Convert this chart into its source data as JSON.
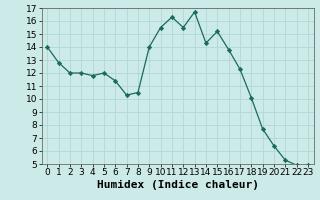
{
  "x": [
    0,
    1,
    2,
    3,
    4,
    5,
    6,
    7,
    8,
    9,
    10,
    11,
    12,
    13,
    14,
    15,
    16,
    17,
    18,
    19,
    20,
    21,
    22,
    23
  ],
  "y": [
    14.0,
    12.8,
    12.0,
    12.0,
    11.8,
    12.0,
    11.4,
    10.3,
    10.5,
    14.0,
    15.5,
    16.3,
    15.5,
    16.7,
    14.3,
    15.2,
    13.8,
    12.3,
    10.1,
    7.7,
    6.4,
    5.3,
    4.9,
    4.9
  ],
  "xlabel": "Humidex (Indice chaleur)",
  "ylim": [
    5,
    17
  ],
  "xlim": [
    -0.5,
    23.5
  ],
  "yticks": [
    5,
    6,
    7,
    8,
    9,
    10,
    11,
    12,
    13,
    14,
    15,
    16,
    17
  ],
  "xticks": [
    0,
    1,
    2,
    3,
    4,
    5,
    6,
    7,
    8,
    9,
    10,
    11,
    12,
    13,
    14,
    15,
    16,
    17,
    18,
    19,
    20,
    21,
    22,
    23
  ],
  "line_color": "#1a6b5a",
  "marker_color": "#1a6b5a",
  "bg_color": "#cceae7",
  "grid_color": "#b0d8d4",
  "xlabel_fontsize": 8,
  "tick_fontsize": 6.5
}
